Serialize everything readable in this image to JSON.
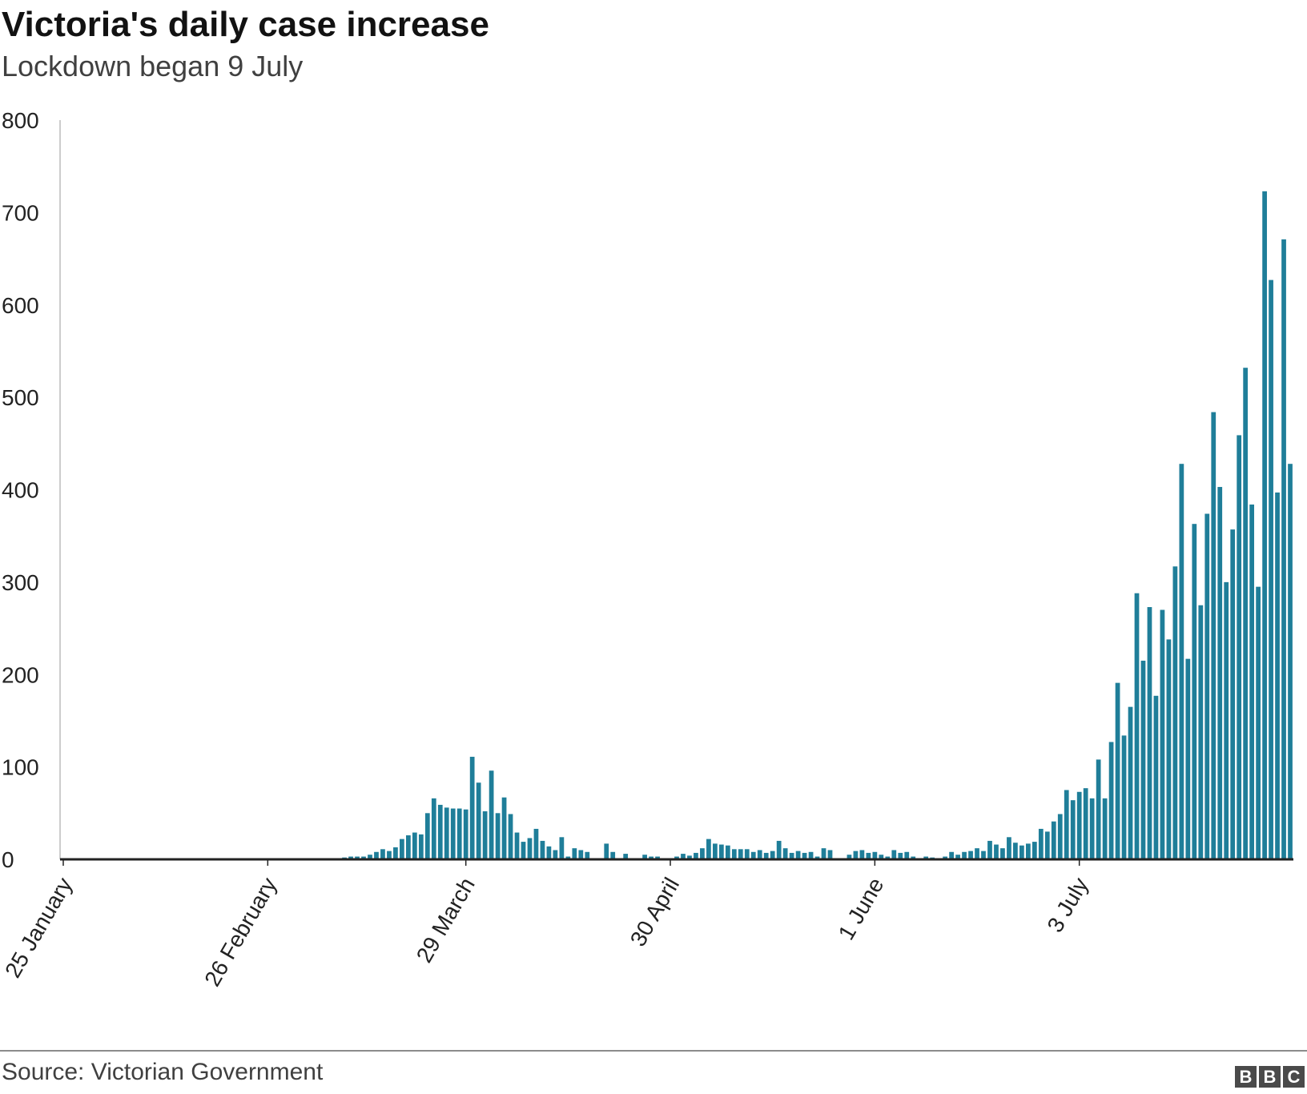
{
  "title": "Victoria's daily case increase",
  "subtitle": "Lockdown began 9 July",
  "source": "Source: Victorian Government",
  "logo": [
    "B",
    "B",
    "C"
  ],
  "colors": {
    "bar": "#1f7e99",
    "axis": "#222222",
    "gridline": "#cccccc"
  },
  "chart_data": {
    "type": "bar",
    "title": "Victoria's daily case increase",
    "subtitle": "Lockdown began 9 July",
    "xlabel": "",
    "ylabel": "",
    "ylim": [
      0,
      800
    ],
    "y_ticks": [
      0,
      100,
      200,
      300,
      400,
      500,
      600,
      700,
      800
    ],
    "x_tick_labels": [
      {
        "index": 0,
        "label": "25 January"
      },
      {
        "index": 32,
        "label": "26 February"
      },
      {
        "index": 63,
        "label": "29 March"
      },
      {
        "index": 95,
        "label": "30 April"
      },
      {
        "index": 127,
        "label": "1 June"
      },
      {
        "index": 159,
        "label": "3 July"
      }
    ],
    "grid": false,
    "legend": "none",
    "values": [
      1,
      0,
      0,
      0,
      0,
      1,
      1,
      0,
      0,
      0,
      0,
      0,
      0,
      0,
      0,
      0,
      0,
      0,
      0,
      0,
      0,
      0,
      0,
      0,
      0,
      0,
      0,
      0,
      0,
      1,
      1,
      1,
      0,
      0,
      0,
      0,
      1,
      1,
      0,
      1,
      1,
      0,
      0,
      1,
      2,
      3,
      3,
      3,
      5,
      8,
      11,
      9,
      13,
      22,
      26,
      29,
      27,
      50,
      66,
      59,
      56,
      55,
      55,
      54,
      111,
      83,
      52,
      96,
      50,
      67,
      49,
      29,
      19,
      23,
      33,
      20,
      14,
      10,
      24,
      3,
      12,
      10,
      8,
      1,
      1,
      17,
      8,
      1,
      6,
      0,
      1,
      5,
      3,
      3,
      0,
      1,
      3,
      6,
      4,
      7,
      12,
      22,
      17,
      16,
      15,
      11,
      11,
      11,
      8,
      10,
      7,
      9,
      20,
      12,
      7,
      9,
      7,
      8,
      3,
      12,
      10,
      0,
      1,
      5,
      9,
      10,
      7,
      8,
      5,
      3,
      10,
      7,
      8,
      3,
      0,
      3,
      2,
      0,
      3,
      8,
      5,
      8,
      9,
      12,
      9,
      20,
      16,
      12,
      24,
      18,
      15,
      17,
      19,
      33,
      30,
      41,
      49,
      75,
      64,
      73,
      77,
      66,
      108,
      66,
      127,
      191,
      134,
      165,
      288,
      215,
      273,
      177,
      270,
      238,
      317,
      428,
      217,
      363,
      275,
      374,
      484,
      403,
      300,
      357,
      459,
      532,
      384,
      295,
      723,
      627,
      397,
      671,
      428
    ]
  }
}
